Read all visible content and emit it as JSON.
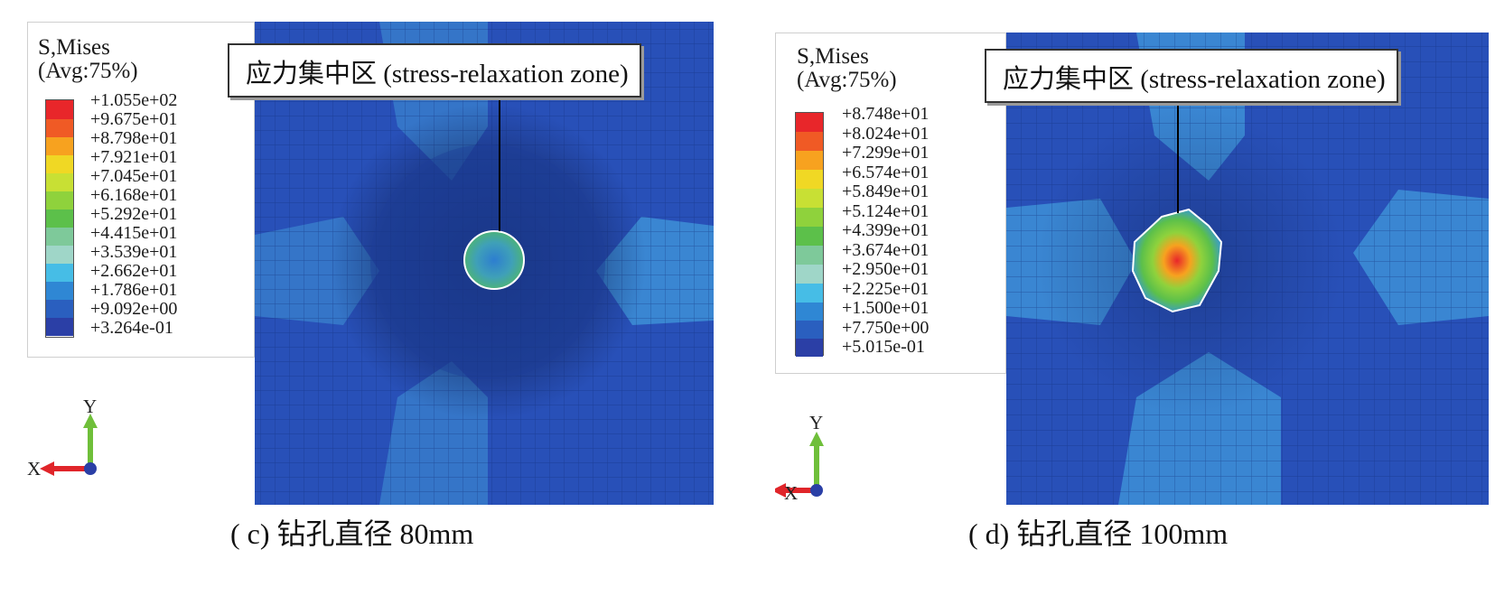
{
  "panel_c": {
    "legend_title_line1": "S,Mises",
    "legend_title_line2": "(Avg:75%)",
    "legend_values": [
      "+1.055e+02",
      "+9.675e+01",
      "+8.798e+01",
      "+7.921e+01",
      "+7.045e+01",
      "+6.168e+01",
      "+5.292e+01",
      "+4.415e+01",
      "+3.539e+01",
      "+2.662e+01",
      "+1.786e+01",
      "+9.092e+00",
      "+3.264e-01"
    ],
    "zone_label": "应力集中区 (stress-relaxation zone)",
    "axis_y": "Y",
    "axis_x": "X",
    "caption": "( c)  钻孔直径 80mm"
  },
  "panel_d": {
    "legend_title_line1": "S,Mises",
    "legend_title_line2": "(Avg:75%)",
    "legend_values": [
      "+8.748e+01",
      "+8.024e+01",
      "+7.299e+01",
      "+6.574e+01",
      "+5.849e+01",
      "+5.124e+01",
      "+4.399e+01",
      "+3.674e+01",
      "+2.950e+01",
      "+2.225e+01",
      "+1.500e+01",
      "+7.750e+00",
      "+5.015e-01"
    ],
    "zone_label": "应力集中区 (stress-relaxation zone)",
    "axis_y": "Y",
    "axis_x": "X",
    "caption": "( d)  钻孔直径 100mm"
  },
  "colors": {
    "contour_scale": [
      "#e8262a",
      "#f05a25",
      "#f7a21f",
      "#f0d824",
      "#c8e034",
      "#8fd23c",
      "#5cc04a",
      "#7ec99a",
      "#9fd6c8",
      "#46bde6",
      "#2f87d4",
      "#2a5fbf",
      "#2b3fa6"
    ],
    "mesh_base": "#2850b8",
    "mesh_light": "#3a86d2"
  }
}
